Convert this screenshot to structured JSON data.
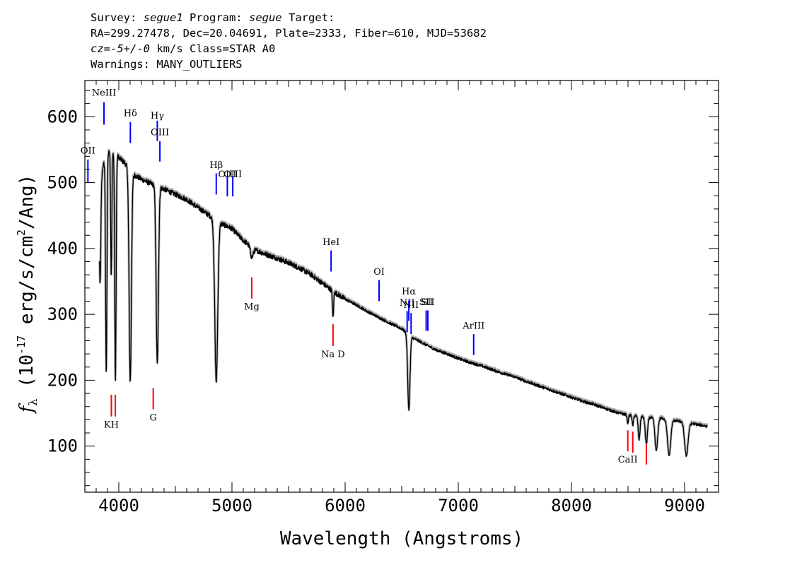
{
  "header": {
    "l1_a": "Survey: ",
    "l1_b": "segue1",
    "l1_c": " Program: ",
    "l1_d": "segue",
    "l1_e": " Target:",
    "l2": "RA=299.27478, Dec=20.04691, Plate=2333, Fiber=610, MJD=53682",
    "l3_a": "cz=-5+/-0",
    "l3_b": " km/s Class=STAR A0",
    "l4": "Warnings: MANY_OUTLIERS"
  },
  "chart_data": {
    "type": "line",
    "title": "",
    "xlabel": "Wavelength (Angstroms)",
    "ylabel": "fλ (10^-17 erg/s/cm^2/Ang)",
    "xlim": [
      3700,
      9300
    ],
    "ylim": [
      30,
      655
    ],
    "x_ticks": [
      4000,
      5000,
      6000,
      7000,
      8000,
      9000
    ],
    "y_ticks": [
      100,
      200,
      300,
      400,
      500,
      600
    ],
    "grid": false,
    "continuum": [
      [
        3830,
        478
      ],
      [
        3860,
        525
      ],
      [
        3900,
        545
      ],
      [
        3950,
        548
      ],
      [
        4000,
        538
      ],
      [
        4050,
        530
      ],
      [
        4130,
        512
      ],
      [
        4200,
        505
      ],
      [
        4300,
        497
      ],
      [
        4400,
        490
      ],
      [
        4500,
        482
      ],
      [
        4600,
        474
      ],
      [
        4700,
        462
      ],
      [
        4800,
        450
      ],
      [
        4900,
        438
      ],
      [
        5000,
        430
      ],
      [
        5100,
        412
      ],
      [
        5200,
        398
      ],
      [
        5300,
        391
      ],
      [
        5400,
        385
      ],
      [
        5500,
        378
      ],
      [
        5600,
        370
      ],
      [
        5700,
        360
      ],
      [
        5800,
        347
      ],
      [
        5900,
        334
      ],
      [
        6000,
        323
      ],
      [
        6100,
        314
      ],
      [
        6200,
        304
      ],
      [
        6300,
        295
      ],
      [
        6400,
        286
      ],
      [
        6500,
        278
      ],
      [
        6600,
        264
      ],
      [
        6700,
        255
      ],
      [
        6800,
        246
      ],
      [
        6900,
        240
      ],
      [
        7000,
        233
      ],
      [
        7100,
        227
      ],
      [
        7200,
        222
      ],
      [
        7300,
        216
      ],
      [
        7400,
        210
      ],
      [
        7500,
        205
      ],
      [
        7600,
        198
      ],
      [
        7700,
        192
      ],
      [
        7800,
        186
      ],
      [
        7900,
        180
      ],
      [
        8000,
        174
      ],
      [
        8100,
        168
      ],
      [
        8200,
        163
      ],
      [
        8300,
        157
      ],
      [
        8400,
        151
      ],
      [
        8500,
        147
      ],
      [
        8600,
        145
      ],
      [
        8700,
        143
      ],
      [
        8800,
        142
      ],
      [
        8900,
        139
      ],
      [
        9000,
        136
      ],
      [
        9100,
        133
      ],
      [
        9200,
        130
      ]
    ],
    "absorption_lines": [
      [
        3835,
        140,
        6
      ],
      [
        3889,
        330,
        6
      ],
      [
        3933,
        190,
        5
      ],
      [
        3970,
        345,
        6
      ],
      [
        4101,
        320,
        10
      ],
      [
        4340,
        270,
        10
      ],
      [
        4861,
        245,
        13
      ],
      [
        5175,
        15,
        12
      ],
      [
        5893,
        40,
        5
      ],
      [
        6563,
        115,
        10
      ],
      [
        8498,
        12,
        6
      ],
      [
        8542,
        15,
        6
      ],
      [
        8598,
        35,
        8
      ],
      [
        8662,
        40,
        10
      ],
      [
        8750,
        50,
        12
      ],
      [
        8863,
        55,
        14
      ],
      [
        9015,
        50,
        15
      ]
    ],
    "emission_markers": [
      {
        "label": "NeIII",
        "x": 3869,
        "y1": 588,
        "y2": 622,
        "label_y": 632
      },
      {
        "label": "OII",
        "x": 3727,
        "y1": 500,
        "y2": 535,
        "label_y": 544
      },
      {
        "label": "Hδ",
        "x": 4102,
        "y1": 560,
        "y2": 592,
        "label_y": 601
      },
      {
        "label": "Hγ",
        "x": 4340,
        "y1": 563,
        "y2": 594,
        "label_y": 597
      },
      {
        "label": "OIII",
        "x": 4363,
        "y1": 532,
        "y2": 563,
        "label_y": 572
      },
      {
        "label": "Hβ",
        "x": 4861,
        "y1": 482,
        "y2": 514,
        "label_y": 522
      },
      {
        "label": "OIII",
        "x": 4959,
        "y1": 479,
        "y2": 510,
        "label_y": 508
      },
      {
        "label": "OIII",
        "x": 5007,
        "y1": 479,
        "y2": 510,
        "label_y": 508
      },
      {
        "label": "HeI",
        "x": 5876,
        "y1": 365,
        "y2": 397,
        "label_y": 405
      },
      {
        "label": "OI",
        "x": 6300,
        "y1": 320,
        "y2": 352,
        "label_y": 360
      },
      {
        "label": "NII",
        "x": 6548,
        "y1": 273,
        "y2": 305,
        "label_y": 313
      },
      {
        "label": "Hα",
        "x": 6563,
        "y1": 290,
        "y2": 321,
        "label_y": 330
      },
      {
        "label": "NII",
        "x": 6583,
        "y1": 270,
        "y2": 302,
        "label_y": 310
      },
      {
        "label": "SII",
        "x": 6716,
        "y1": 275,
        "y2": 306,
        "label_y": 314
      },
      {
        "label": "SII",
        "x": 6731,
        "y1": 275,
        "y2": 306,
        "label_y": 314
      },
      {
        "label": "ArIII",
        "x": 7136,
        "y1": 238,
        "y2": 270,
        "label_y": 278
      }
    ],
    "absorption_markers": [
      {
        "label": "Mg",
        "x": 5175,
        "y1": 324,
        "y2": 356,
        "label_y": 307
      },
      {
        "label": "Na D",
        "x": 5893,
        "y1": 252,
        "y2": 285,
        "label_y": 235
      },
      {
        "label": "KH",
        "x": 3934,
        "y1": 145,
        "y2": 178,
        "label_y": 128
      },
      {
        "label": "",
        "x": 3969,
        "y1": 145,
        "y2": 178,
        "label_y": 128
      },
      {
        "label": "G",
        "x": 4304,
        "y1": 156,
        "y2": 188,
        "label_y": 139
      },
      {
        "label": "CaII",
        "x": 8498,
        "y1": 92,
        "y2": 124,
        "label_y": 75
      },
      {
        "label": "",
        "x": 8542,
        "y1": 90,
        "y2": 122,
        "label_y": 75
      },
      {
        "label": "",
        "x": 8662,
        "y1": 72,
        "y2": 104,
        "label_y": 75
      }
    ],
    "colors": {
      "spectrum": "#000000",
      "error": "#b0b0b0",
      "emission": "#0000ff",
      "absorption": "#ff0000",
      "axes": "#000000"
    }
  }
}
